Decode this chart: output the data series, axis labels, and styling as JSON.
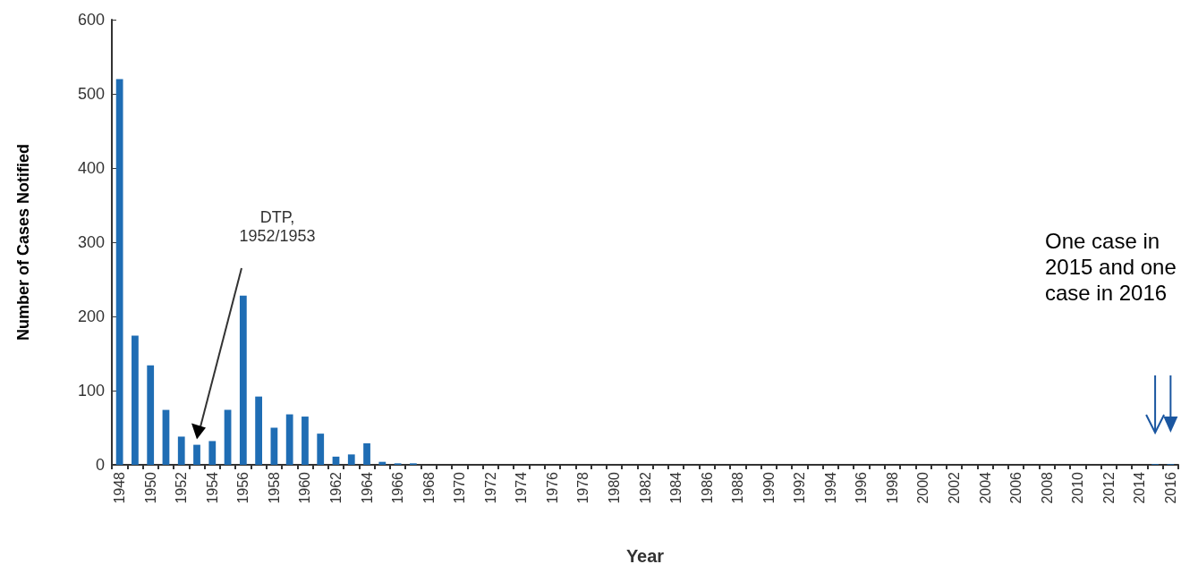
{
  "chart_data": {
    "type": "bar",
    "xlabel": "Year",
    "ylabel": "Number of Cases Notified",
    "categories": [
      "1948",
      null,
      "1950",
      null,
      "1952",
      null,
      "1954",
      null,
      "1956",
      null,
      "1958",
      null,
      "1960",
      null,
      "1962",
      null,
      "1964",
      null,
      "1966",
      null,
      "1968",
      null,
      "1970",
      null,
      "1972",
      null,
      "1974",
      null,
      "1976",
      null,
      "1978",
      null,
      "1980",
      null,
      "1982",
      null,
      "1984",
      null,
      "1986",
      null,
      "1988",
      null,
      "1990",
      null,
      "1992",
      null,
      "1994",
      null,
      "1996",
      null,
      "1998",
      null,
      "2000",
      null,
      "2002",
      null,
      "2004",
      null,
      "2006",
      null,
      "2008",
      null,
      "2010",
      null,
      "2012",
      null,
      "2014",
      null,
      "2016"
    ],
    "values": [
      520,
      174,
      134,
      74,
      38,
      27,
      32,
      74,
      228,
      92,
      50,
      68,
      65,
      42,
      11,
      14,
      29,
      4,
      2,
      2,
      0,
      0,
      0,
      0,
      0,
      0,
      0,
      0,
      0,
      0,
      0,
      0,
      0,
      0,
      0,
      0,
      0,
      0,
      0,
      0,
      0,
      0,
      0,
      0,
      0,
      0,
      0,
      0,
      0,
      0,
      0,
      0,
      0,
      0,
      0,
      0,
      0,
      0,
      0,
      0,
      0,
      0,
      0,
      0,
      0,
      0,
      0,
      1,
      1
    ],
    "color": "#1f6db4",
    "ylim": [
      0,
      600
    ],
    "yticks": [
      0,
      100,
      200,
      300,
      400,
      500,
      600
    ],
    "grid": false,
    "annotations": [
      "DTP,\n1952/1953",
      "One case in 2015 and one case in 2016"
    ]
  }
}
